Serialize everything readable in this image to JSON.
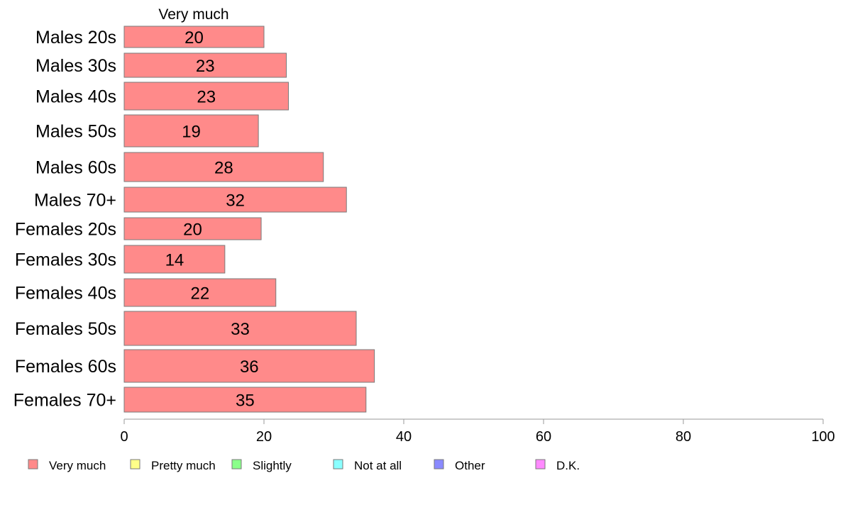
{
  "chart_data": {
    "type": "bar",
    "orientation": "horizontal",
    "stacked": true,
    "column_label": "Very much",
    "categories": [
      "Males 20s",
      "Males 30s",
      "Males 40s",
      "Males 50s",
      "Males 60s",
      "Males 70+",
      "Females 20s",
      "Females 30s",
      "Females 40s",
      "Females 50s",
      "Females 60s",
      "Females 70+"
    ],
    "series": [
      {
        "name": "Very much",
        "color": "#ff8a8a",
        "values": [
          20,
          23.2,
          23.5,
          19.2,
          28.5,
          31.8,
          19.6,
          14.4,
          21.7,
          33.2,
          35.8,
          34.6
        ],
        "labels": [
          "20",
          "23",
          "23",
          "19",
          "28",
          "32",
          "20",
          "14",
          "22",
          "33",
          "36",
          "35"
        ]
      }
    ],
    "legend": [
      {
        "label": "Very much",
        "color": "#ff8a8a"
      },
      {
        "label": "Pretty much",
        "color": "#ffff8a"
      },
      {
        "label": "Slightly",
        "color": "#8aff8a"
      },
      {
        "label": "Not at all",
        "color": "#8affff"
      },
      {
        "label": "Other",
        "color": "#8a8aff"
      },
      {
        "label": "D.K.",
        "color": "#ff8aff"
      }
    ],
    "legend_position": "bottom",
    "xlim": [
      0,
      100
    ],
    "xticks": [
      0,
      20,
      40,
      60,
      80,
      100
    ],
    "grid": false
  }
}
